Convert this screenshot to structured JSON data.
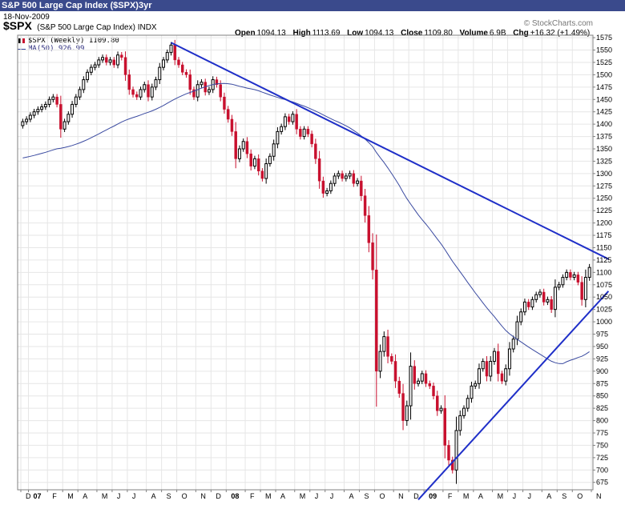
{
  "header": {
    "title_bar": "S&P 500 Large Cap Index ($SPX)3yr",
    "date": "18-Nov-2009",
    "symbol": "$SPX",
    "description": "(S&P 500 Large Cap Index) INDX",
    "watermark": "© StockCharts.com"
  },
  "ohlc": {
    "open_label": "Open",
    "open": "1094.13",
    "high_label": "High",
    "high": "1113.69",
    "low_label": "Low",
    "low": "1094.13",
    "close_label": "Close",
    "close": "1109.80",
    "volume_label": "Volume",
    "volume": "6.9B",
    "chg_label": "Chg",
    "chg": "+16.32 (+1.49%)",
    "chg_arrow": "▲"
  },
  "legend": {
    "price": "$SPX (Weekly) 1109.80",
    "ma": "MA(50) 926.99"
  },
  "colors": {
    "up": "#000000",
    "down": "#c8102e",
    "ma": "#3a4aa0",
    "trend": "#1f2fc8",
    "title_bar": "#3a4a8c"
  },
  "chart_data": {
    "type": "candlestick",
    "title": "S&P 500 Large Cap Index ($SPX)3yr",
    "ylim": [
      660,
      1580
    ],
    "y_ticks": [
      675,
      700,
      725,
      750,
      775,
      800,
      825,
      850,
      875,
      900,
      925,
      950,
      975,
      1000,
      1025,
      1050,
      1075,
      1100,
      1125,
      1150,
      1175,
      1200,
      1225,
      1250,
      1275,
      1300,
      1325,
      1350,
      1375,
      1400,
      1425,
      1450,
      1475,
      1500,
      1525,
      1550,
      1575
    ],
    "x_ticks": [
      {
        "label": "D",
        "week": 0,
        "year": false
      },
      {
        "label": "07",
        "week": 2,
        "year": true
      },
      {
        "label": "F",
        "week": 7,
        "year": false
      },
      {
        "label": "M",
        "week": 11,
        "year": false
      },
      {
        "label": "A",
        "week": 15,
        "year": false
      },
      {
        "label": "M",
        "week": 20,
        "year": false
      },
      {
        "label": "J",
        "week": 24,
        "year": false
      },
      {
        "label": "J",
        "week": 28,
        "year": false
      },
      {
        "label": "A",
        "week": 33,
        "year": false
      },
      {
        "label": "S",
        "week": 37,
        "year": false
      },
      {
        "label": "O",
        "week": 41,
        "year": false
      },
      {
        "label": "N",
        "week": 46,
        "year": false
      },
      {
        "label": "D",
        "week": 50,
        "year": false
      },
      {
        "label": "08",
        "week": 54,
        "year": true
      },
      {
        "label": "F",
        "week": 59,
        "year": false
      },
      {
        "label": "M",
        "week": 63,
        "year": false
      },
      {
        "label": "A",
        "week": 67,
        "year": false
      },
      {
        "label": "M",
        "week": 72,
        "year": false
      },
      {
        "label": "J",
        "week": 76,
        "year": false
      },
      {
        "label": "J",
        "week": 80,
        "year": false
      },
      {
        "label": "A",
        "week": 85,
        "year": false
      },
      {
        "label": "S",
        "week": 89,
        "year": false
      },
      {
        "label": "O",
        "week": 93,
        "year": false
      },
      {
        "label": "N",
        "week": 98,
        "year": false
      },
      {
        "label": "D",
        "week": 102,
        "year": false
      },
      {
        "label": "09",
        "week": 106,
        "year": true
      },
      {
        "label": "F",
        "week": 111,
        "year": false
      },
      {
        "label": "M",
        "week": 115,
        "year": false
      },
      {
        "label": "A",
        "week": 119,
        "year": false
      },
      {
        "label": "M",
        "week": 124,
        "year": false
      },
      {
        "label": "J",
        "week": 128,
        "year": false
      },
      {
        "label": "J",
        "week": 132,
        "year": false
      },
      {
        "label": "A",
        "week": 137,
        "year": false
      },
      {
        "label": "S",
        "week": 141,
        "year": false
      },
      {
        "label": "O",
        "week": 145,
        "year": false
      },
      {
        "label": "N",
        "week": 150,
        "year": false
      }
    ],
    "closes": [
      1405,
      1410,
      1418,
      1425,
      1430,
      1435,
      1440,
      1450,
      1455,
      1440,
      1390,
      1405,
      1420,
      1440,
      1455,
      1470,
      1490,
      1505,
      1515,
      1520,
      1530,
      1535,
      1525,
      1530,
      1520,
      1540,
      1535,
      1500,
      1470,
      1460,
      1455,
      1470,
      1480,
      1455,
      1475,
      1490,
      1515,
      1530,
      1545,
      1560,
      1530,
      1520,
      1505,
      1500,
      1470,
      1455,
      1480,
      1485,
      1465,
      1470,
      1490,
      1480,
      1455,
      1430,
      1410,
      1385,
      1330,
      1350,
      1365,
      1340,
      1315,
      1330,
      1305,
      1290,
      1320,
      1335,
      1360,
      1385,
      1395,
      1415,
      1405,
      1420,
      1390,
      1375,
      1390,
      1380,
      1360,
      1330,
      1285,
      1260,
      1265,
      1280,
      1295,
      1300,
      1290,
      1295,
      1300,
      1280,
      1285,
      1255,
      1215,
      1160,
      1105,
      900,
      940,
      970,
      930,
      920,
      880,
      855,
      800,
      830,
      910,
      875,
      880,
      895,
      875,
      870,
      850,
      820,
      825,
      750,
      720,
      700,
      780,
      810,
      825,
      845,
      870,
      875,
      905,
      920,
      890,
      920,
      940,
      895,
      880,
      905,
      945,
      965,
      1000,
      1020,
      1040,
      1030,
      1045,
      1055,
      1060,
      1040,
      1045,
      1025,
      1070,
      1075,
      1090,
      1100,
      1090,
      1095,
      1080,
      1045,
      1090,
      1110
    ],
    "trendlines": [
      {
        "name": "resistance",
        "from": {
          "week": 39,
          "value": 1565
        },
        "to": {
          "week": 154,
          "value": 1127
        }
      },
      {
        "name": "support",
        "from": {
          "week": 104,
          "value": 640
        },
        "to": {
          "week": 154,
          "value": 1062
        }
      }
    ],
    "ma_period": 50
  }
}
